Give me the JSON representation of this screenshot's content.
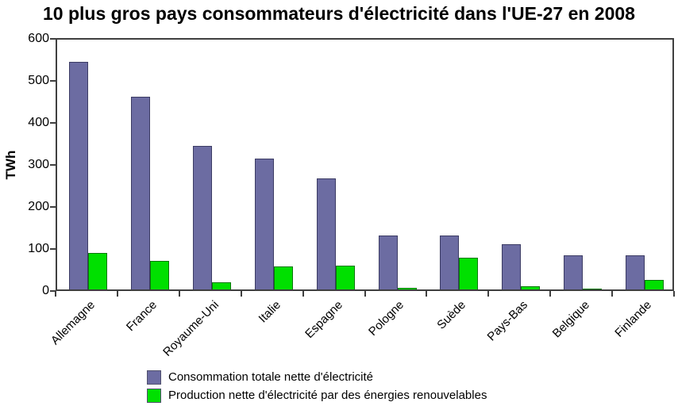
{
  "chart_data": {
    "type": "bar",
    "title": "10 plus gros pays consommateurs d'électricité dans l'UE-27 en 2008",
    "ylabel": "TWh",
    "xlabel": "",
    "ylim": [
      0,
      600
    ],
    "yticks": [
      0,
      100,
      200,
      300,
      400,
      500,
      600
    ],
    "grid": false,
    "legend_position": "bottom",
    "categories": [
      "Allemagne",
      "France",
      "Royaume-Uni",
      "Italie",
      "Espagne",
      "Pologne",
      "Suède",
      "Pays-Bas",
      "Belgique",
      "Finlande"
    ],
    "series": [
      {
        "name": "Consommation totale nette d'électricité",
        "color": "#6c6ca2",
        "border_color": "#3c3c64",
        "values": [
          545,
          462,
          345,
          315,
          267,
          133,
          132,
          112,
          85,
          84
        ]
      },
      {
        "name": "Production nette d'électricité par des énergies renouvelables",
        "color": "#00e000",
        "border_color": "#0b770b",
        "values": [
          90,
          72,
          21,
          58,
          60,
          7,
          80,
          11,
          5,
          27
        ]
      }
    ]
  }
}
